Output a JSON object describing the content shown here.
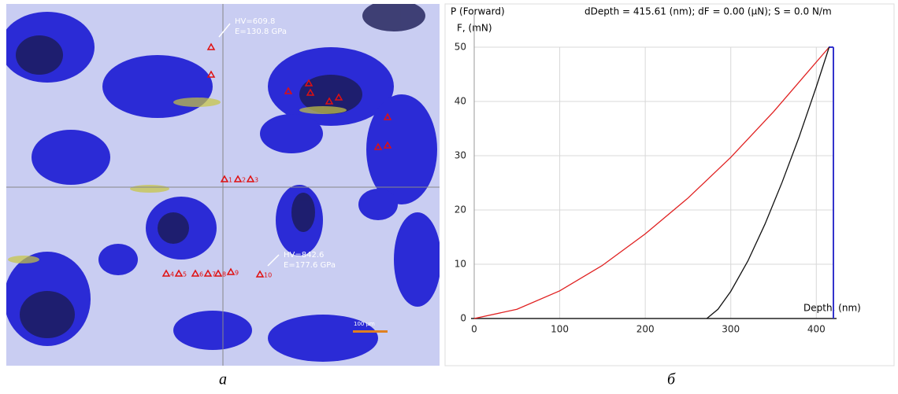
{
  "micrograph": {
    "indent_1": {
      "hv": "HV=609.8",
      "e": "E=130.8 GPa"
    },
    "indent_2": {
      "hv": "HV=842.6",
      "e": "E=177.6 GPa"
    },
    "scale_bar": "100 µm",
    "markers": [
      "1",
      "2",
      "3",
      "4",
      "5",
      "6",
      "7",
      "8",
      "9",
      "10"
    ]
  },
  "captions": [
    "а",
    "б"
  ],
  "chart_data": {
    "type": "line",
    "title": "P (Forward)",
    "subtitle": "dDepth = 415.61 (nm); dF = 0.00 (µN); S = 0.0 N/m",
    "y_label": "F, (mN)",
    "x_label": "Depth, (nm)",
    "series": [
      {
        "color": "#e02020",
        "x": [
          0,
          50,
          100,
          150,
          200,
          250,
          300,
          350,
          415
        ],
        "values": [
          0,
          1.7,
          5.1,
          9.8,
          15.6,
          22.2,
          29.7,
          38.1,
          50
        ]
      },
      {
        "color": "#111111",
        "x": [
          415,
          400,
          380,
          360,
          340,
          320,
          300,
          285,
          272
        ],
        "values": [
          50,
          42.7,
          33.5,
          25.1,
          17.4,
          10.6,
          5,
          1.7,
          0
        ]
      }
    ],
    "xlim": [
      0,
      420
    ],
    "ylim": [
      0,
      50
    ],
    "xticks": [
      0,
      100,
      200,
      300,
      400
    ],
    "yticks": [
      0,
      10,
      20,
      30,
      40,
      50
    ],
    "grid": true
  }
}
